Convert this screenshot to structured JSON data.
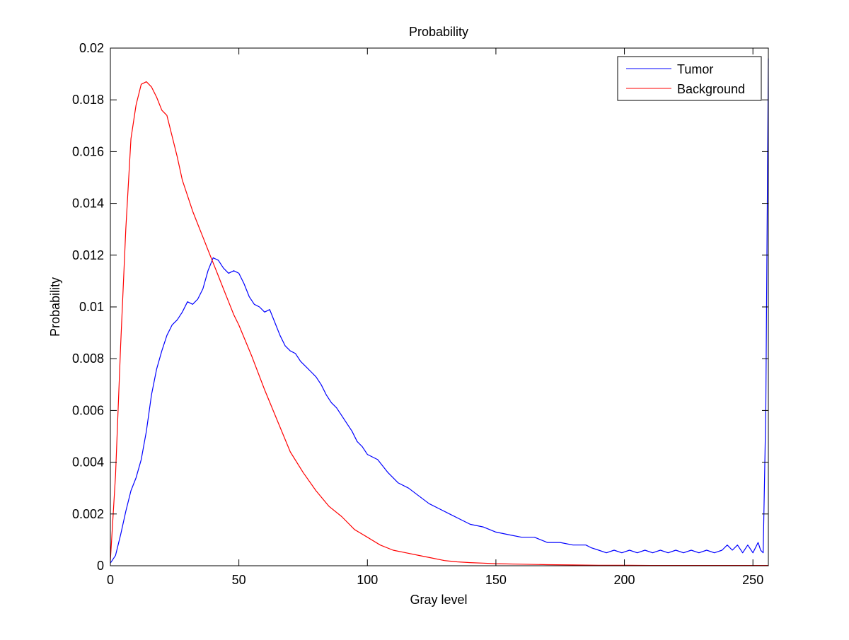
{
  "chart_data": {
    "type": "line",
    "title": "Probability",
    "xlabel": "Gray level",
    "ylabel": "Probability",
    "xlim": [
      0,
      256
    ],
    "ylim": [
      0,
      0.02
    ],
    "x_ticks": [
      0,
      50,
      100,
      150,
      200,
      250
    ],
    "y_ticks": [
      0,
      0.002,
      0.004,
      0.006,
      0.008,
      0.01,
      0.012,
      0.014,
      0.016,
      0.018,
      0.02
    ],
    "x_tick_labels": [
      "0",
      "50",
      "100",
      "150",
      "200",
      "250"
    ],
    "y_tick_labels": [
      "0",
      "0.002",
      "0.004",
      "0.006",
      "0.008",
      "0.01",
      "0.012",
      "0.014",
      "0.016",
      "0.018",
      "0.02"
    ],
    "grid": false,
    "legend": {
      "position": "top-right",
      "entries": [
        "Tumor",
        "Background"
      ]
    },
    "series": [
      {
        "name": "Tumor",
        "color": "#0000ff",
        "x": [
          0,
          2,
          4,
          6,
          8,
          10,
          12,
          14,
          16,
          18,
          20,
          22,
          24,
          26,
          28,
          30,
          32,
          34,
          36,
          38,
          40,
          42,
          44,
          46,
          48,
          50,
          52,
          54,
          56,
          58,
          60,
          62,
          64,
          66,
          68,
          70,
          72,
          74,
          76,
          78,
          80,
          82,
          84,
          86,
          88,
          90,
          92,
          94,
          96,
          98,
          100,
          104,
          108,
          112,
          116,
          120,
          124,
          128,
          132,
          136,
          140,
          145,
          150,
          155,
          160,
          165,
          170,
          175,
          180,
          185,
          187,
          190,
          193,
          196,
          199,
          202,
          205,
          208,
          211,
          214,
          217,
          220,
          223,
          226,
          229,
          232,
          235,
          238,
          240,
          242,
          244,
          246,
          248,
          250,
          252,
          253,
          254,
          255,
          256
        ],
        "y": [
          0.0001,
          0.0004,
          0.0012,
          0.0021,
          0.0029,
          0.0034,
          0.0041,
          0.0052,
          0.0066,
          0.0076,
          0.0083,
          0.0089,
          0.0093,
          0.0095,
          0.0098,
          0.0102,
          0.0101,
          0.0103,
          0.0107,
          0.0114,
          0.0119,
          0.0118,
          0.0115,
          0.0113,
          0.0114,
          0.0113,
          0.0109,
          0.0104,
          0.0101,
          0.01,
          0.0098,
          0.0099,
          0.0094,
          0.0089,
          0.0085,
          0.0083,
          0.0082,
          0.0079,
          0.0077,
          0.0075,
          0.0073,
          0.007,
          0.0066,
          0.0063,
          0.0061,
          0.0058,
          0.0055,
          0.0052,
          0.0048,
          0.0046,
          0.0043,
          0.0041,
          0.0036,
          0.0032,
          0.003,
          0.0027,
          0.0024,
          0.0022,
          0.002,
          0.0018,
          0.0016,
          0.0015,
          0.0013,
          0.0012,
          0.0011,
          0.0011,
          0.0009,
          0.0009,
          0.0008,
          0.0008,
          0.0007,
          0.0006,
          0.0005,
          0.0006,
          0.0005,
          0.0006,
          0.0005,
          0.0006,
          0.0005,
          0.0006,
          0.0005,
          0.0006,
          0.0005,
          0.0006,
          0.0005,
          0.0006,
          0.0005,
          0.0006,
          0.0008,
          0.0006,
          0.0008,
          0.0005,
          0.0008,
          0.0005,
          0.0009,
          0.0006,
          0.0005,
          0.006,
          0.0196
        ]
      },
      {
        "name": "Background",
        "color": "#ff0000",
        "x": [
          0,
          2,
          4,
          6,
          8,
          10,
          12,
          14,
          16,
          18,
          20,
          22,
          24,
          26,
          28,
          30,
          32,
          34,
          36,
          38,
          40,
          42,
          44,
          46,
          48,
          50,
          55,
          60,
          65,
          70,
          75,
          80,
          85,
          90,
          95,
          100,
          105,
          110,
          115,
          120,
          125,
          130,
          135,
          140,
          145,
          150,
          160,
          170,
          180,
          190,
          200,
          210,
          220,
          230,
          240,
          250,
          256
        ],
        "y": [
          0.0002,
          0.0035,
          0.0085,
          0.013,
          0.0165,
          0.0178,
          0.0186,
          0.0187,
          0.0185,
          0.0181,
          0.0176,
          0.0174,
          0.0166,
          0.0158,
          0.0149,
          0.0143,
          0.0137,
          0.0132,
          0.0127,
          0.0122,
          0.0117,
          0.0112,
          0.0107,
          0.0102,
          0.0097,
          0.0093,
          0.0081,
          0.0068,
          0.0056,
          0.0044,
          0.0036,
          0.0029,
          0.0023,
          0.0019,
          0.0014,
          0.0011,
          0.0008,
          0.0006,
          0.0005,
          0.0004,
          0.0003,
          0.0002,
          0.00015,
          0.00012,
          0.0001,
          8e-05,
          6e-05,
          4e-05,
          3e-05,
          2e-05,
          2e-05,
          1e-05,
          1e-05,
          1e-05,
          1e-05,
          1e-05,
          1e-05
        ]
      }
    ]
  }
}
